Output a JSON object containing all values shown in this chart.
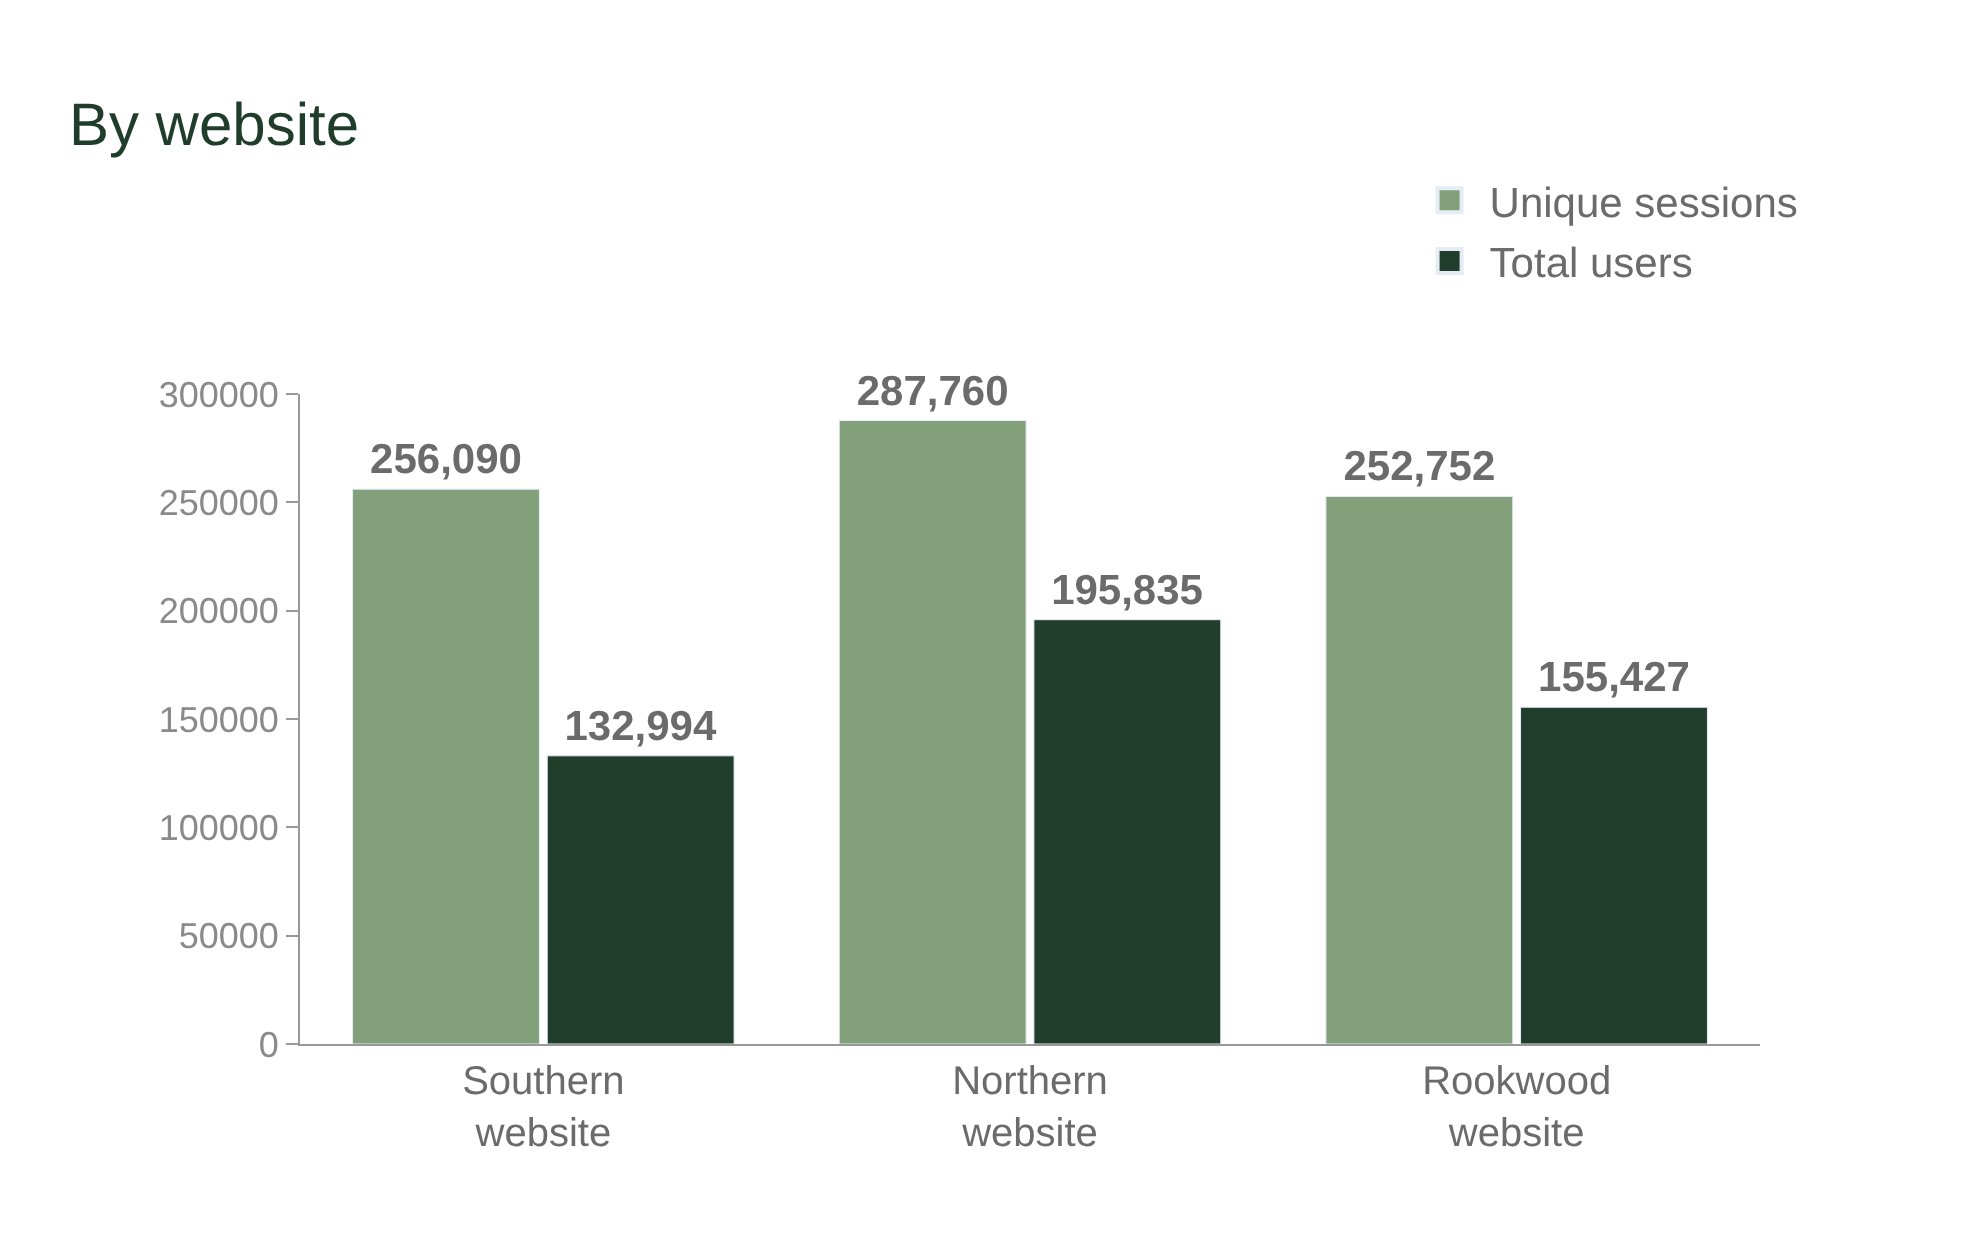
{
  "chart_data": {
    "type": "bar",
    "title": "By website",
    "categories": [
      "Southern website",
      "Northern website",
      "Rookwood website"
    ],
    "series": [
      {
        "name": "Unique sessions",
        "color": "#82a07a",
        "values": [
          256090,
          287760,
          252752
        ],
        "value_labels": [
          "256,090",
          "287,760",
          "252,752"
        ]
      },
      {
        "name": "Total users",
        "color": "#213d2b",
        "values": [
          132994,
          195835,
          155427
        ],
        "value_labels": [
          "132,994",
          "195,835",
          "155,427"
        ]
      }
    ],
    "ylim": [
      0,
      300000
    ],
    "yticks": [
      0,
      50000,
      100000,
      150000,
      200000,
      250000,
      300000
    ],
    "grid": false,
    "legend": "top right"
  }
}
